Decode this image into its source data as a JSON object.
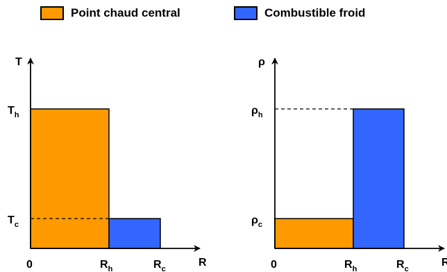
{
  "colors": {
    "hot": "#FF9900",
    "cold": "#3366FF",
    "stroke": "#000000"
  },
  "legend": {
    "hot_label": "Point chaud central",
    "cold_label": "Combustible froid"
  },
  "left_plot": {
    "y_axis_label": "T",
    "x_axis_label": "R",
    "y_tick_high": {
      "base": "T",
      "sub": "h"
    },
    "y_tick_low": {
      "base": "T",
      "sub": "c"
    },
    "x_tick_zero": "0",
    "x_tick_mid": {
      "base": "R",
      "sub": "h"
    },
    "x_tick_end": {
      "base": "R",
      "sub": "c"
    }
  },
  "right_plot": {
    "y_axis_label": "ρ",
    "x_axis_label": "R",
    "y_tick_high": {
      "base": "ρ",
      "sub": "h"
    },
    "y_tick_low": {
      "base": "ρ",
      "sub": "c"
    },
    "x_tick_zero": "0",
    "x_tick_mid": {
      "base": "R",
      "sub": "h"
    },
    "x_tick_end": {
      "base": "R",
      "sub": "c"
    }
  }
}
